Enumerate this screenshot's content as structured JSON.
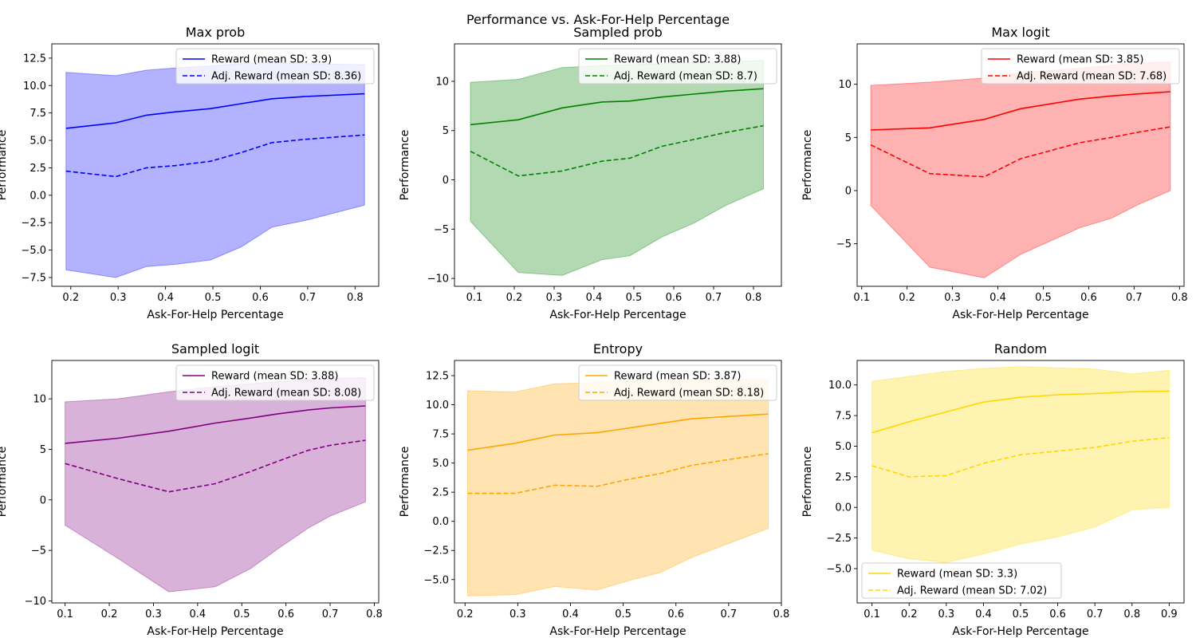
{
  "suptitle": "Performance vs. Ask-For-Help Percentage",
  "chart_data": [
    {
      "type": "line",
      "title": "Max prob",
      "xlabel": "Ask-For-Help Percentage",
      "ylabel": "Performance",
      "color": "#0000ff",
      "xlim": [
        0.16,
        0.85
      ],
      "ylim": [
        -8.3,
        13.8
      ],
      "xticks": [
        0.2,
        0.3,
        0.4,
        0.5,
        0.6,
        0.7,
        0.8
      ],
      "xtick_labels": [
        "0.2",
        "0.3",
        "0.4",
        "0.5",
        "0.6",
        "0.7",
        "0.8"
      ],
      "yticks": [
        -7.5,
        -5.0,
        -2.5,
        0.0,
        2.5,
        5.0,
        7.5,
        10.0,
        12.5
      ],
      "ytick_labels": [
        "−7.5",
        "−5.0",
        "−2.5",
        "0.0",
        "2.5",
        "5.0",
        "7.5",
        "10.0",
        "12.5"
      ],
      "legend_loc": "upper right",
      "x": [
        0.19,
        0.295,
        0.36,
        0.42,
        0.495,
        0.56,
        0.625,
        0.695,
        0.82
      ],
      "series": [
        {
          "name": "Reward (mean SD: 3.9)",
          "style": "solid",
          "values": [
            6.1,
            6.6,
            7.3,
            7.6,
            7.9,
            8.35,
            8.8,
            9.0,
            9.25
          ]
        },
        {
          "name": "Adj. Reward (mean SD: 8.36)",
          "style": "dashed",
          "values": [
            2.2,
            1.7,
            2.5,
            2.7,
            3.1,
            3.9,
            4.8,
            5.1,
            5.5
          ]
        }
      ],
      "band": {
        "upper": [
          11.2,
          10.9,
          11.4,
          11.6,
          11.8,
          12.0,
          12.1,
          12.0,
          11.9
        ],
        "lower": [
          -6.8,
          -7.5,
          -6.5,
          -6.3,
          -5.9,
          -4.7,
          -2.9,
          -2.3,
          -0.9
        ]
      }
    },
    {
      "type": "line",
      "title": "Sampled prob",
      "xlabel": "Ask-For-Help Percentage",
      "ylabel": "Performance",
      "color": "#008000",
      "xlim": [
        0.05,
        0.87
      ],
      "ylim": [
        -10.8,
        13.8
      ],
      "xticks": [
        0.1,
        0.2,
        0.3,
        0.4,
        0.5,
        0.6,
        0.7,
        0.8
      ],
      "xtick_labels": [
        "0.1",
        "0.2",
        "0.3",
        "0.4",
        "0.5",
        "0.6",
        "0.7",
        "0.8"
      ],
      "yticks": [
        -10,
        -5,
        0,
        5,
        10
      ],
      "ytick_labels": [
        "−10",
        "−5",
        "0",
        "5",
        "10"
      ],
      "legend_loc": "upper right",
      "x": [
        0.09,
        0.21,
        0.32,
        0.42,
        0.49,
        0.57,
        0.65,
        0.73,
        0.825
      ],
      "series": [
        {
          "name": "Reward (mean SD: 3.88)",
          "style": "solid",
          "values": [
            5.6,
            6.1,
            7.3,
            7.9,
            8.0,
            8.4,
            8.7,
            9.0,
            9.25
          ]
        },
        {
          "name": "Adj. Reward (mean SD: 8.7)",
          "style": "dashed",
          "values": [
            2.9,
            0.4,
            0.9,
            1.9,
            2.2,
            3.4,
            4.1,
            4.8,
            5.5
          ]
        }
      ],
      "band": {
        "upper": [
          9.9,
          10.2,
          11.4,
          11.6,
          11.7,
          11.8,
          11.9,
          12.0,
          12.1
        ],
        "lower": [
          -4.2,
          -9.4,
          -9.7,
          -8.1,
          -7.7,
          -5.8,
          -4.4,
          -2.6,
          -0.9
        ]
      }
    },
    {
      "type": "line",
      "title": "Max logit",
      "xlabel": "Ask-For-Help Percentage",
      "ylabel": "Performance",
      "color": "#ff0000",
      "xlim": [
        0.09,
        0.81
      ],
      "ylim": [
        -9.0,
        13.8
      ],
      "xticks": [
        0.1,
        0.2,
        0.3,
        0.4,
        0.5,
        0.6,
        0.7,
        0.8
      ],
      "xtick_labels": [
        "0.1",
        "0.2",
        "0.3",
        "0.4",
        "0.5",
        "0.6",
        "0.7",
        "0.8"
      ],
      "yticks": [
        -5,
        0,
        5,
        10
      ],
      "ytick_labels": [
        "−5",
        "0",
        "5",
        "10"
      ],
      "legend_loc": "upper right",
      "x": [
        0.12,
        0.25,
        0.37,
        0.45,
        0.58,
        0.65,
        0.71,
        0.78
      ],
      "series": [
        {
          "name": "Reward (mean SD: 3.85)",
          "style": "solid",
          "values": [
            5.7,
            5.9,
            6.7,
            7.7,
            8.6,
            8.9,
            9.1,
            9.3
          ]
        },
        {
          "name": "Adj. Reward (mean SD: 7.68)",
          "style": "dashed",
          "values": [
            4.3,
            1.6,
            1.3,
            3.0,
            4.5,
            5.0,
            5.5,
            6.0
          ]
        }
      ],
      "band": {
        "upper": [
          9.9,
          10.2,
          10.6,
          11.1,
          11.5,
          11.8,
          12.0,
          12.1
        ],
        "lower": [
          -1.4,
          -7.2,
          -8.2,
          -6.0,
          -3.5,
          -2.6,
          -1.3,
          0.0
        ]
      }
    },
    {
      "type": "line",
      "title": "Sampled logit",
      "xlabel": "Ask-For-Help Percentage",
      "ylabel": "Performance",
      "color": "#800080",
      "xlim": [
        0.07,
        0.81
      ],
      "ylim": [
        -10.2,
        13.8
      ],
      "xticks": [
        0.1,
        0.2,
        0.3,
        0.4,
        0.5,
        0.6,
        0.7,
        0.8
      ],
      "xtick_labels": [
        "0.1",
        "0.2",
        "0.3",
        "0.4",
        "0.5",
        "0.6",
        "0.7",
        "0.8"
      ],
      "yticks": [
        -10,
        -5,
        0,
        5,
        10
      ],
      "ytick_labels": [
        "−10",
        "−5",
        "0",
        "5",
        "10"
      ],
      "legend_loc": "upper right",
      "x": [
        0.1,
        0.22,
        0.335,
        0.44,
        0.52,
        0.58,
        0.65,
        0.7,
        0.78
      ],
      "series": [
        {
          "name": "Reward (mean SD: 3.88)",
          "style": "solid",
          "values": [
            5.6,
            6.1,
            6.8,
            7.6,
            8.1,
            8.5,
            8.9,
            9.1,
            9.3
          ]
        },
        {
          "name": "Adj. Reward (mean SD: 8.08)",
          "style": "dashed",
          "values": [
            3.6,
            2.1,
            0.8,
            1.6,
            2.8,
            3.8,
            4.9,
            5.4,
            5.9
          ]
        }
      ],
      "band": {
        "upper": [
          9.7,
          10.0,
          10.7,
          11.2,
          11.5,
          11.7,
          11.9,
          12.0,
          12.1
        ],
        "lower": [
          -2.5,
          -5.8,
          -9.1,
          -8.6,
          -6.8,
          -4.9,
          -2.8,
          -1.6,
          -0.2
        ]
      }
    },
    {
      "type": "line",
      "title": "Entropy",
      "xlabel": "Ask-For-Help Percentage",
      "ylabel": "Performance",
      "color": "#ffa500",
      "xlim": [
        0.18,
        0.8
      ],
      "ylim": [
        -7.0,
        13.8
      ],
      "xticks": [
        0.2,
        0.3,
        0.4,
        0.5,
        0.6,
        0.7,
        0.8
      ],
      "xtick_labels": [
        "0.2",
        "0.3",
        "0.4",
        "0.5",
        "0.6",
        "0.7",
        "0.8"
      ],
      "yticks": [
        -5.0,
        -2.5,
        0.0,
        2.5,
        5.0,
        7.5,
        10.0,
        12.5
      ],
      "ytick_labels": [
        "−5.0",
        "−2.5",
        "0.0",
        "2.5",
        "5.0",
        "7.5",
        "10.0",
        "12.5"
      ],
      "legend_loc": "upper right",
      "x": [
        0.205,
        0.295,
        0.37,
        0.45,
        0.51,
        0.57,
        0.63,
        0.7,
        0.775
      ],
      "series": [
        {
          "name": "Reward (mean SD: 3.87)",
          "style": "solid",
          "values": [
            6.1,
            6.7,
            7.4,
            7.6,
            8.0,
            8.4,
            8.8,
            9.0,
            9.2
          ]
        },
        {
          "name": "Adj. Reward (mean SD: 8.18)",
          "style": "dashed",
          "values": [
            2.4,
            2.4,
            3.1,
            3.0,
            3.6,
            4.1,
            4.8,
            5.3,
            5.8
          ]
        }
      ],
      "band": {
        "upper": [
          11.2,
          11.1,
          11.8,
          11.9,
          12.0,
          12.1,
          12.2,
          12.2,
          12.2
        ],
        "lower": [
          -6.4,
          -6.3,
          -5.6,
          -5.9,
          -5.1,
          -4.4,
          -3.1,
          -1.9,
          -0.6
        ]
      }
    },
    {
      "type": "line",
      "title": "Random",
      "xlabel": "Ask-For-Help Percentage",
      "ylabel": "Performance",
      "color": "#ffd700",
      "xlim": [
        0.06,
        0.94
      ],
      "ylim": [
        -7.8,
        12.0
      ],
      "xticks": [
        0.1,
        0.2,
        0.3,
        0.4,
        0.5,
        0.6,
        0.7,
        0.8,
        0.9
      ],
      "xtick_labels": [
        "0.1",
        "0.2",
        "0.3",
        "0.4",
        "0.5",
        "0.6",
        "0.7",
        "0.8",
        "0.9"
      ],
      "yticks": [
        -5.0,
        -2.5,
        0.0,
        2.5,
        5.0,
        7.5,
        10.0
      ],
      "ytick_labels": [
        "−5.0",
        "−2.5",
        "0.0",
        "2.5",
        "5.0",
        "7.5",
        "10.0"
      ],
      "legend_loc": "lower left",
      "x": [
        0.1,
        0.2,
        0.3,
        0.4,
        0.5,
        0.6,
        0.7,
        0.8,
        0.9
      ],
      "series": [
        {
          "name": "Reward (mean SD: 3.3)",
          "style": "solid",
          "values": [
            6.1,
            7.0,
            7.8,
            8.6,
            9.0,
            9.2,
            9.3,
            9.45,
            9.5
          ]
        },
        {
          "name": "Adj. Reward (mean SD: 7.02)",
          "style": "dashed",
          "values": [
            3.4,
            2.5,
            2.6,
            3.6,
            4.3,
            4.6,
            4.9,
            5.4,
            5.7
          ]
        }
      ],
      "band": {
        "upper": [
          10.3,
          10.7,
          11.1,
          11.35,
          11.5,
          11.4,
          11.3,
          10.9,
          11.2
        ],
        "lower": [
          -3.5,
          -4.2,
          -4.5,
          -3.8,
          -3.0,
          -2.4,
          -1.6,
          -0.2,
          0.0
        ]
      }
    }
  ]
}
